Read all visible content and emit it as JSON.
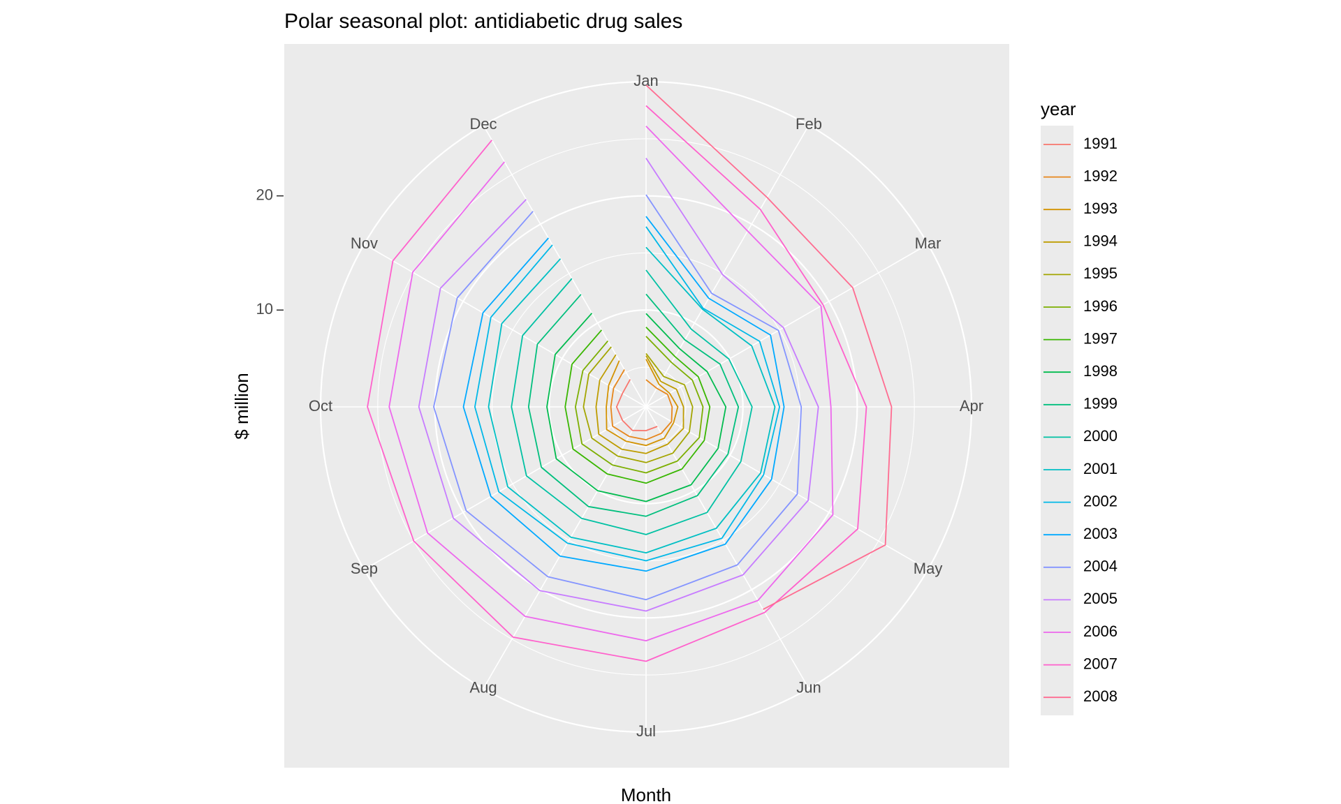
{
  "chart_data": {
    "type": "line",
    "coord": "polar",
    "title": "Polar seasonal plot: antidiabetic drug sales",
    "xlabel": "Month",
    "ylabel": "$ million",
    "categories": [
      "Jan",
      "Feb",
      "Mar",
      "Apr",
      "May",
      "Jun",
      "Jul",
      "Aug",
      "Sep",
      "Oct",
      "Nov",
      "Dec"
    ],
    "r_ticks": [
      10,
      20
    ],
    "r_tick_labels": [
      "10",
      "20"
    ],
    "r_range": [
      2.5,
      30
    ],
    "grid": true,
    "panel_background": "#ebebeb",
    "legend_title": "year",
    "legend_position": "right",
    "series": [
      {
        "name": "1991",
        "color": "#F8766D",
        "values": [
          null,
          null,
          null,
          null,
          null,
          3.5,
          3.6,
          3.9,
          3.9,
          4.1,
          3.9,
          4.3
        ]
      },
      {
        "name": "1992",
        "color": "#E7861B",
        "values": [
          3.9,
          3.4,
          3.7,
          3.8,
          4.1,
          4.2,
          4.4,
          4.5,
          4.9,
          4.6,
          4.8,
          5.3
        ]
      },
      {
        "name": "1993",
        "color": "#D39200",
        "values": [
          5.7,
          3.8,
          3.9,
          4.3,
          4.3,
          4.7,
          4.9,
          5.0,
          5.5,
          5.0,
          5.3,
          6.2
        ]
      },
      {
        "name": "1994",
        "color": "#BE9C00",
        "values": [
          6.0,
          4.1,
          4.6,
          4.8,
          5.3,
          5.3,
          5.6,
          5.8,
          6.3,
          5.9,
          6.2,
          6.8
        ]
      },
      {
        "name": "1995",
        "color": "#A3A500",
        "values": [
          6.2,
          4.6,
          5.4,
          5.6,
          5.9,
          6.2,
          6.4,
          6.5,
          7.0,
          7.0,
          7.3,
          7.6
        ]
      },
      {
        "name": "1996",
        "color": "#7CAE00",
        "values": [
          7.7,
          6.0,
          6.2,
          6.5,
          6.9,
          7.0,
          7.3,
          7.4,
          8.0,
          7.7,
          7.9,
          8.2
        ]
      },
      {
        "name": "1997",
        "color": "#39B600",
        "values": [
          8.5,
          6.6,
          6.8,
          7.1,
          7.4,
          7.8,
          8.2,
          8.3,
          8.9,
          8.6,
          9.0,
          9.3
        ]
      },
      {
        "name": "1998",
        "color": "#00BB4E",
        "values": [
          9.7,
          7.4,
          7.7,
          8.5,
          8.8,
          9.4,
          9.8,
          10.0,
          10.6,
          10.2,
          10.7,
          11.0
        ]
      },
      {
        "name": "1999",
        "color": "#00BF7D",
        "values": [
          11.4,
          8.3,
          9.0,
          9.6,
          9.8,
          10.5,
          11.1,
          11.6,
          12.1,
          11.8,
          12.5,
          12.9
        ]
      },
      {
        "name": "2000",
        "color": "#00C1A3",
        "values": [
          13.5,
          9.4,
          9.9,
          10.8,
          11.1,
          12.2,
          12.7,
          12.8,
          13.6,
          13.3,
          14.0,
          14.5
        ]
      },
      {
        "name": "2001",
        "color": "#00BFC4",
        "values": [
          15.5,
          11.4,
          12.2,
          12.8,
          13.1,
          13.8,
          14.3,
          14.7,
          15.5,
          15.3,
          16.1,
          16.5
        ]
      },
      {
        "name": "2002",
        "color": "#00B8E7",
        "values": [
          17.3,
          11.5,
          13.0,
          13.2,
          13.4,
          14.8,
          15.0,
          15.3,
          16.4,
          16.5,
          17.2,
          17.9
        ]
      },
      {
        "name": "2003",
        "color": "#00A9FF",
        "values": [
          18.2,
          12.5,
          14.1,
          13.6,
          14.2,
          15.4,
          15.9,
          16.6,
          17.2,
          17.5,
          18.0,
          18.6
        ]
      },
      {
        "name": "2004",
        "color": "#8494FF",
        "values": [
          20.1,
          13.0,
          14.9,
          15.1,
          16.8,
          17.5,
          18.4,
          18.7,
          19.7,
          20.1,
          20.6,
          21.3
        ]
      },
      {
        "name": "2005",
        "color": "#C77CFF",
        "values": [
          23.3,
          14.9,
          15.4,
          16.6,
          17.9,
          18.5,
          19.4,
          20.1,
          21.0,
          21.4,
          22.3,
          22.5
        ]
      },
      {
        "name": "2006",
        "color": "#ED68ED",
        "values": [
          26.1,
          19.3,
          19.2,
          17.7,
          20.4,
          21.1,
          22.0,
          22.7,
          23.6,
          24.0,
          25.1,
          26.3
        ]
      },
      {
        "name": "2007",
        "color": "#FF61CC",
        "values": [
          27.9,
          21.5,
          19.4,
          20.8,
          22.9,
          22.3,
          23.8,
          24.8,
          25.0,
          25.9,
          27.1,
          28.5
        ]
      },
      {
        "name": "2008",
        "color": "#FF6C91",
        "values": [
          29.7,
          22.7,
          22.4,
          23.0,
          25.7,
          22.0,
          null,
          null,
          null,
          null,
          null,
          null
        ]
      }
    ]
  }
}
